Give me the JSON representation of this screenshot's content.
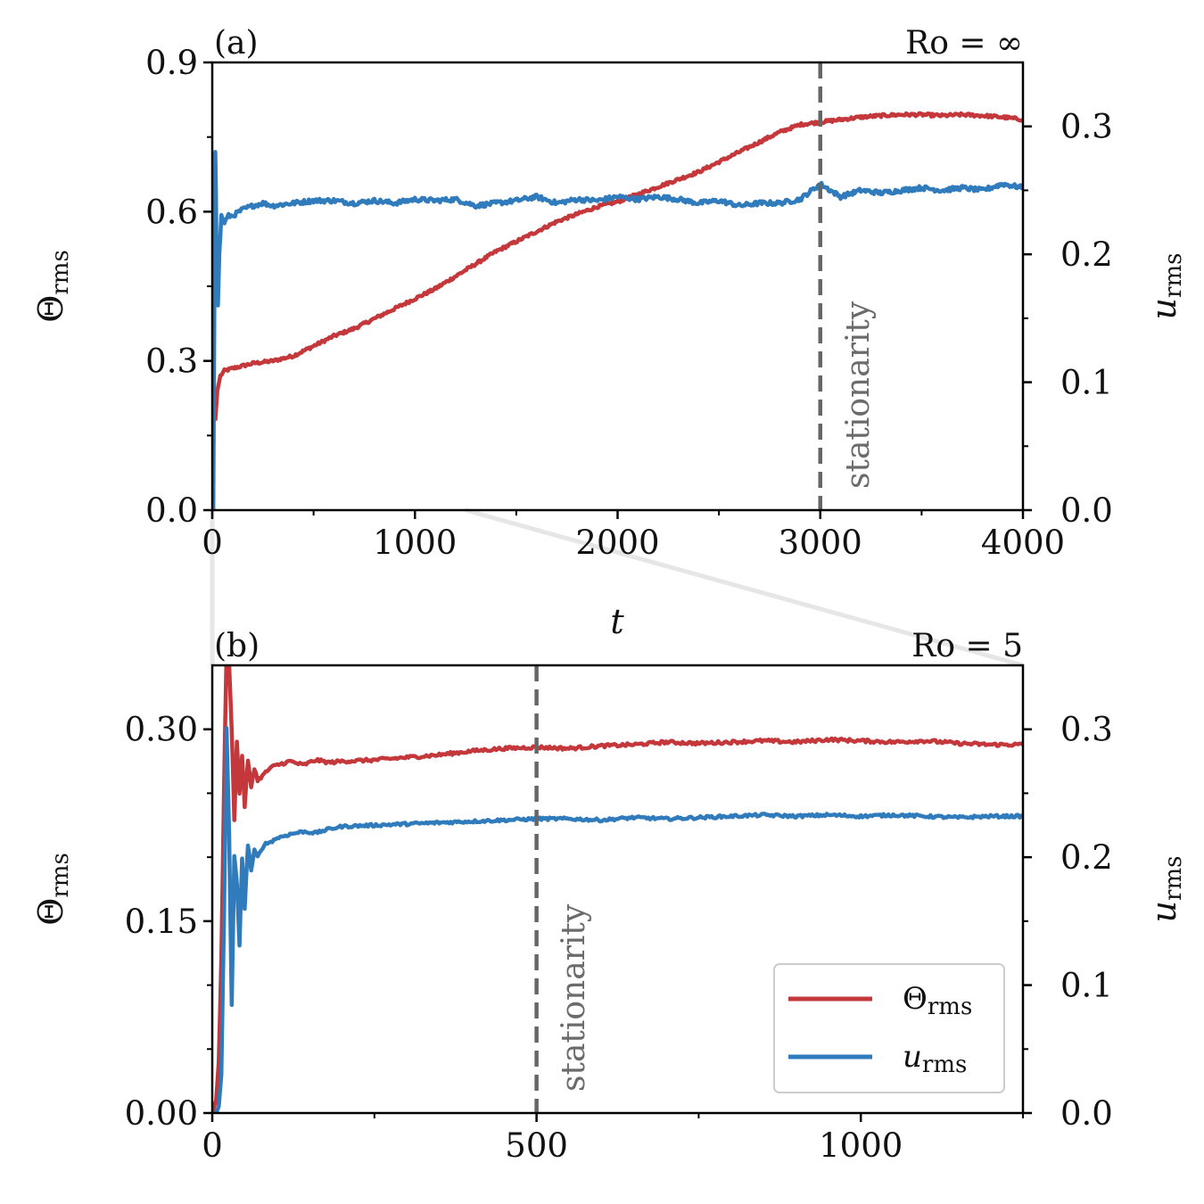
{
  "colors": {
    "theta": "#c4373a",
    "u": "#2f7bbc",
    "marker": "#666666",
    "connector": "#e6e6e6"
  },
  "chart_data": [
    {
      "type": "line",
      "panel_label": "(a)",
      "regime_label": "Ro = ∞",
      "xlabel": "t",
      "ylabel_left": {
        "base": "Θ",
        "sub": "rms"
      },
      "ylabel_right": {
        "base": "u",
        "sub": "rms"
      },
      "xlim": [
        0,
        4000
      ],
      "ylim_left": [
        0,
        0.9
      ],
      "ylim_right": [
        0,
        0.35
      ],
      "xticks": [
        0,
        1000,
        2000,
        3000,
        4000
      ],
      "xtick_labels": [
        "0",
        "1000",
        "2000",
        "3000",
        "4000"
      ],
      "xticks_minor": [
        500,
        1500,
        2500,
        3500
      ],
      "yticks_left": [
        0,
        0.3,
        0.6,
        0.9
      ],
      "ytick_labels_left": [
        "0.0",
        "0.3",
        "0.6",
        "0.9"
      ],
      "yticks_left_minor": [
        0.15,
        0.45,
        0.75
      ],
      "yticks_right": [
        0,
        0.1,
        0.2,
        0.3
      ],
      "ytick_labels_right": [
        "0.0",
        "0.1",
        "0.2",
        "0.3"
      ],
      "yticks_right_minor": [
        0.05,
        0.15,
        0.25
      ],
      "vline": {
        "x": 3000,
        "label": "stationarity"
      },
      "series": [
        {
          "name": "Θrms",
          "axis": "left",
          "color": "#c4373a",
          "x": [
            15,
            25,
            40,
            60,
            100,
            150,
            200,
            300,
            400,
            500,
            600,
            700,
            800,
            900,
            1000,
            1100,
            1200,
            1300,
            1400,
            1500,
            1600,
            1700,
            1800,
            1900,
            2000,
            2100,
            2200,
            2300,
            2400,
            2500,
            2600,
            2700,
            2800,
            2900,
            3000,
            3100,
            3200,
            3300,
            3400,
            3500,
            3600,
            3700,
            3800,
            3900,
            4000
          ],
          "y": [
            0.18,
            0.24,
            0.27,
            0.28,
            0.285,
            0.29,
            0.295,
            0.3,
            0.31,
            0.33,
            0.35,
            0.365,
            0.385,
            0.405,
            0.425,
            0.445,
            0.47,
            0.495,
            0.52,
            0.54,
            0.56,
            0.58,
            0.595,
            0.61,
            0.62,
            0.635,
            0.65,
            0.665,
            0.68,
            0.7,
            0.72,
            0.74,
            0.76,
            0.775,
            0.78,
            0.785,
            0.79,
            0.793,
            0.795,
            0.795,
            0.793,
            0.795,
            0.793,
            0.79,
            0.785
          ]
        },
        {
          "name": "urms",
          "axis": "right",
          "color": "#2f7bbc",
          "x": [
            5,
            10,
            15,
            18,
            22,
            28,
            35,
            45,
            60,
            80,
            100,
            150,
            200,
            250,
            300,
            400,
            500,
            600,
            700,
            800,
            900,
            1000,
            1100,
            1200,
            1300,
            1400,
            1500,
            1600,
            1700,
            1800,
            1900,
            2000,
            2100,
            2200,
            2300,
            2400,
            2500,
            2600,
            2700,
            2800,
            2900,
            3000,
            3100,
            3200,
            3300,
            3400,
            3500,
            3600,
            3700,
            3800,
            3900,
            4000
          ],
          "y": [
            0.0,
            0.15,
            0.28,
            0.25,
            0.18,
            0.16,
            0.2,
            0.23,
            0.225,
            0.23,
            0.23,
            0.235,
            0.238,
            0.24,
            0.238,
            0.24,
            0.242,
            0.242,
            0.24,
            0.242,
            0.24,
            0.243,
            0.242,
            0.243,
            0.238,
            0.24,
            0.242,
            0.245,
            0.24,
            0.243,
            0.242,
            0.245,
            0.243,
            0.245,
            0.243,
            0.24,
            0.242,
            0.238,
            0.24,
            0.24,
            0.243,
            0.255,
            0.245,
            0.25,
            0.248,
            0.25,
            0.252,
            0.25,
            0.252,
            0.25,
            0.255,
            0.252
          ]
        }
      ]
    },
    {
      "type": "line",
      "panel_label": "(b)",
      "regime_label": "Ro = 5",
      "xlabel": "",
      "ylabel_left": {
        "base": "Θ",
        "sub": "rms"
      },
      "ylabel_right": {
        "base": "u",
        "sub": "rms"
      },
      "xlim": [
        0,
        1250
      ],
      "ylim_left": [
        0,
        0.35
      ],
      "ylim_right": [
        0,
        0.35
      ],
      "xticks": [
        0,
        500,
        1000
      ],
      "xtick_labels": [
        "0",
        "500",
        "1000"
      ],
      "xticks_minor": [
        250,
        750,
        1250
      ],
      "yticks_left": [
        0,
        0.15,
        0.3
      ],
      "ytick_labels_left": [
        "0.00",
        "0.15",
        "0.30"
      ],
      "yticks_left_minor": [
        0.05,
        0.1,
        0.2,
        0.25
      ],
      "yticks_right": [
        0,
        0.1,
        0.2,
        0.3
      ],
      "ytick_labels_right": [
        "0.0",
        "0.1",
        "0.2",
        "0.3"
      ],
      "yticks_right_minor": [
        0.05,
        0.15,
        0.25
      ],
      "vline": {
        "x": 500,
        "label": "stationarity"
      },
      "series": [
        {
          "name": "Θrms",
          "axis": "left",
          "color": "#c4373a",
          "x": [
            0,
            6,
            10,
            14,
            18,
            22,
            26,
            30,
            34,
            38,
            42,
            46,
            50,
            55,
            60,
            65,
            70,
            80,
            90,
            100,
            120,
            140,
            160,
            180,
            200,
            250,
            300,
            350,
            400,
            450,
            500,
            550,
            600,
            650,
            700,
            750,
            800,
            850,
            900,
            950,
            1000,
            1050,
            1100,
            1150,
            1200,
            1250
          ],
          "y": [
            0.0,
            0.01,
            0.04,
            0.12,
            0.25,
            0.36,
            0.35,
            0.3,
            0.23,
            0.29,
            0.25,
            0.28,
            0.24,
            0.275,
            0.255,
            0.27,
            0.26,
            0.265,
            0.27,
            0.272,
            0.275,
            0.272,
            0.276,
            0.274,
            0.275,
            0.276,
            0.278,
            0.28,
            0.283,
            0.285,
            0.286,
            0.285,
            0.287,
            0.288,
            0.29,
            0.289,
            0.29,
            0.291,
            0.29,
            0.292,
            0.291,
            0.29,
            0.291,
            0.289,
            0.288,
            0.288
          ]
        },
        {
          "name": "urms",
          "axis": "right",
          "color": "#2f7bbc",
          "x": [
            0,
            6,
            10,
            14,
            18,
            22,
            26,
            30,
            34,
            38,
            42,
            46,
            50,
            55,
            60,
            65,
            70,
            80,
            90,
            100,
            120,
            140,
            160,
            180,
            200,
            250,
            300,
            350,
            400,
            450,
            500,
            550,
            600,
            650,
            700,
            750,
            800,
            850,
            900,
            950,
            1000,
            1050,
            1100,
            1150,
            1200,
            1250
          ],
          "y": [
            0.0,
            0.0,
            0.005,
            0.03,
            0.15,
            0.3,
            0.22,
            0.085,
            0.2,
            0.18,
            0.13,
            0.2,
            0.16,
            0.21,
            0.19,
            0.205,
            0.2,
            0.21,
            0.212,
            0.215,
            0.218,
            0.22,
            0.219,
            0.222,
            0.224,
            0.225,
            0.226,
            0.227,
            0.228,
            0.229,
            0.23,
            0.23,
            0.229,
            0.231,
            0.23,
            0.231,
            0.232,
            0.233,
            0.232,
            0.233,
            0.232,
            0.233,
            0.232,
            0.231,
            0.232,
            0.232
          ]
        }
      ],
      "legend": {
        "position": "lower-right",
        "entries": [
          {
            "base": "Θ",
            "sub": "rms",
            "color": "#c4373a"
          },
          {
            "base": "u",
            "sub": "rms",
            "color": "#2f7bbc"
          }
        ]
      }
    }
  ]
}
